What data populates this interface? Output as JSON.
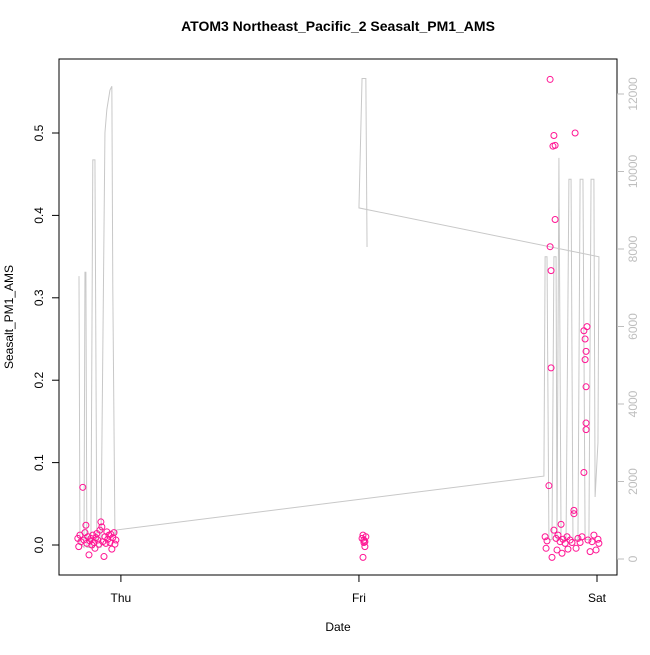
{
  "chart_data": {
    "type": "scatter",
    "title": "ATOM3 Northeast_Pacific_2 Seasalt_PM1_AMS",
    "xlabel": "Date",
    "ylabel": "Seasalt_PM1_AMS",
    "xlim": [
      -0.26,
      2.084
    ],
    "xticks": [
      {
        "value": 0,
        "label": "Thu"
      },
      {
        "value": 1,
        "label": "Fri"
      },
      {
        "value": 2,
        "label": "Sat"
      }
    ],
    "ylim": [
      -0.0364,
      0.5898
    ],
    "yticks": [
      {
        "value": 0,
        "label": "0.0"
      },
      0.1,
      0.2,
      0.3,
      0.4,
      0.5
    ],
    "y2lim": [
      -413,
      12903
    ],
    "y2ticks": [
      0,
      2000,
      4000,
      6000,
      8000,
      10000,
      12000
    ],
    "y2color": "#bebebe",
    "series": [
      {
        "type": "line",
        "axis": "y2",
        "color": "#c8c8c8",
        "x": [
          -0.176,
          -0.172,
          -0.155,
          -0.151,
          -0.147,
          -0.143,
          -0.126,
          -0.118,
          -0.109,
          -0.101,
          -0.084,
          -0.067,
          -0.059,
          -0.046,
          -0.038,
          -0.034,
          -0.025,
          -0.017,
          1.777,
          1.782,
          1.79,
          1.798,
          1.811,
          1.819,
          1.828,
          1.832,
          1.84,
          1.849,
          1.87,
          1.882,
          1.891,
          1.899,
          1.92,
          1.929,
          1.941,
          1.95,
          1.966,
          1.975,
          1.987,
          1.992,
          2.004,
          2.008,
          1.0,
          1.013,
          1.029,
          1.034
        ],
        "values": [
          7300,
          400,
          300,
          7400,
          7400,
          300,
          300,
          10300,
          10300,
          300,
          300,
          11000,
          11600,
          12100,
          12200,
          7000,
          600,
          750,
          2140,
          7800,
          7800,
          500,
          500,
          7800,
          7800,
          500,
          10350,
          500,
          500,
          9800,
          9800,
          500,
          500,
          9800,
          9800,
          500,
          500,
          9800,
          9800,
          1600,
          3000,
          7800,
          9060,
          12400,
          12400,
          8050
        ]
      },
      {
        "type": "scatter",
        "color": "#ff1493",
        "x": [
          -0.181,
          -0.177,
          -0.172,
          -0.168,
          -0.16,
          -0.155,
          -0.151,
          -0.147,
          -0.143,
          -0.139,
          -0.134,
          -0.13,
          -0.126,
          -0.122,
          -0.118,
          -0.113,
          -0.109,
          -0.105,
          -0.101,
          -0.097,
          -0.092,
          -0.088,
          -0.084,
          -0.08,
          -0.076,
          -0.071,
          -0.067,
          -0.063,
          -0.059,
          -0.055,
          -0.05,
          -0.046,
          -0.042,
          -0.038,
          -0.034,
          -0.029,
          -0.025,
          -0.021,
          1.013,
          1.017,
          1.021,
          1.025,
          1.017,
          1.021,
          1.029,
          1.025,
          1.782,
          1.786,
          1.79,
          1.798,
          1.803,
          1.803,
          1.807,
          1.807,
          1.811,
          1.815,
          1.819,
          1.824,
          1.824,
          1.819,
          1.828,
          1.832,
          1.836,
          1.845,
          1.849,
          1.853,
          1.857,
          1.866,
          1.874,
          1.878,
          1.887,
          1.895,
          1.903,
          1.903,
          1.908,
          1.912,
          1.92,
          1.929,
          1.937,
          1.945,
          1.945,
          1.95,
          1.95,
          1.954,
          1.954,
          1.954,
          1.958,
          1.954,
          1.962,
          1.971,
          1.979,
          1.987,
          1.996,
          2.004,
          2.008
        ],
        "values": [
          0.008,
          -0.002,
          0.012,
          0.004,
          0.07,
          0.006,
          0.015,
          0.024,
          0.002,
          0.01,
          -0.012,
          0.005,
          0.008,
          0.0,
          0.012,
          0.003,
          -0.004,
          0.009,
          0.014,
          0.006,
          0.001,
          0.018,
          0.028,
          0.022,
          0.004,
          -0.014,
          0.01,
          0.002,
          0.016,
          0.007,
          0.012,
          0.003,
          0.013,
          -0.005,
          0.009,
          0.015,
          0.001,
          0.006,
          0.008,
          0.012,
          0.003,
          -0.002,
          -0.015,
          0.006,
          0.01,
          0.004,
          0.01,
          -0.004,
          0.005,
          0.072,
          0.565,
          0.362,
          0.333,
          0.215,
          -0.015,
          0.484,
          0.497,
          0.485,
          0.395,
          0.018,
          0.008,
          -0.006,
          0.012,
          0.004,
          0.025,
          -0.01,
          0.007,
          0.002,
          0.01,
          -0.005,
          0.006,
          0.003,
          0.042,
          0.038,
          0.5,
          -0.004,
          0.008,
          0.003,
          0.01,
          0.088,
          0.26,
          0.25,
          0.225,
          0.192,
          0.148,
          0.14,
          0.265,
          0.235,
          0.006,
          -0.008,
          0.004,
          0.012,
          -0.006,
          0.007,
          0.002
        ]
      }
    ]
  }
}
